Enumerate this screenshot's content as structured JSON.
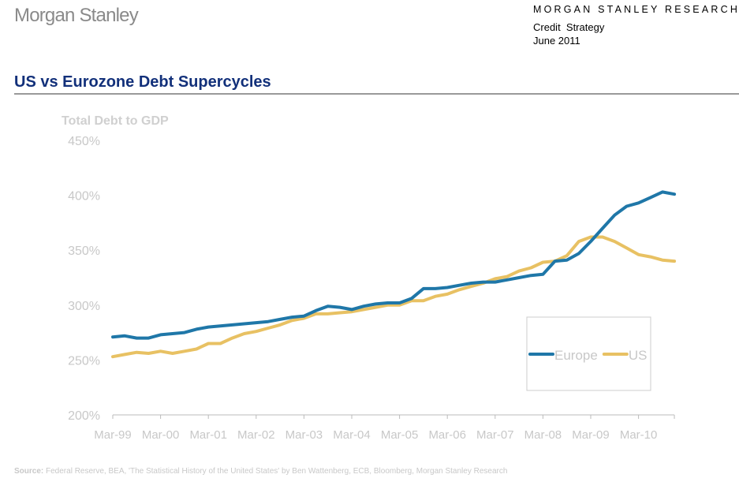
{
  "header": {
    "logo": "Morgan Stanley",
    "research": "MORGAN STANLEY RESEARCH",
    "dept": "Credit  Strategy",
    "date": "June 2011"
  },
  "title": "US vs Eurozone Debt Supercycles",
  "source": {
    "label": "Source:",
    "text": " Federal Reserve, BEA, 'The Statistical History of the United States' by Ben Wattenberg, ECB, Bloomberg, Morgan Stanley Research"
  },
  "chart_data": {
    "type": "line",
    "title": "",
    "ylabel": "Total Debt to GDP",
    "xlabel": "",
    "ylim": [
      200,
      450
    ],
    "yticks": [
      "200%",
      "250%",
      "300%",
      "350%",
      "400%",
      "450%"
    ],
    "ytick_values": [
      200,
      250,
      300,
      350,
      400,
      450
    ],
    "xticks": [
      "Mar-99",
      "Mar-00",
      "Mar-01",
      "Mar-02",
      "Mar-03",
      "Mar-04",
      "Mar-05",
      "Mar-06",
      "Mar-07",
      "Mar-08",
      "Mar-09",
      "Mar-10"
    ],
    "x_frequency": "quarterly, Mar-99 to Dec-10",
    "legend": "bottom-right",
    "series": [
      {
        "name": "Europe",
        "color": "#1f77a8",
        "values": [
          271,
          272,
          270,
          270,
          273,
          274,
          275,
          278,
          280,
          281,
          282,
          283,
          284,
          285,
          287,
          289,
          290,
          295,
          299,
          298,
          296,
          299,
          301,
          302,
          302,
          306,
          315,
          315,
          316,
          318,
          320,
          321,
          321,
          323,
          325,
          327,
          328,
          340,
          341,
          347,
          358,
          370,
          382,
          390,
          393,
          398,
          403,
          401
        ]
      },
      {
        "name": "US",
        "color": "#e8c163",
        "values": [
          253,
          255,
          257,
          256,
          258,
          256,
          258,
          260,
          265,
          265,
          270,
          274,
          276,
          279,
          282,
          286,
          288,
          292,
          292,
          293,
          294,
          296,
          298,
          300,
          300,
          304,
          304,
          308,
          310,
          314,
          317,
          320,
          324,
          326,
          331,
          334,
          339,
          340,
          345,
          358,
          362,
          362,
          358,
          352,
          346,
          344,
          341,
          340
        ]
      }
    ]
  }
}
